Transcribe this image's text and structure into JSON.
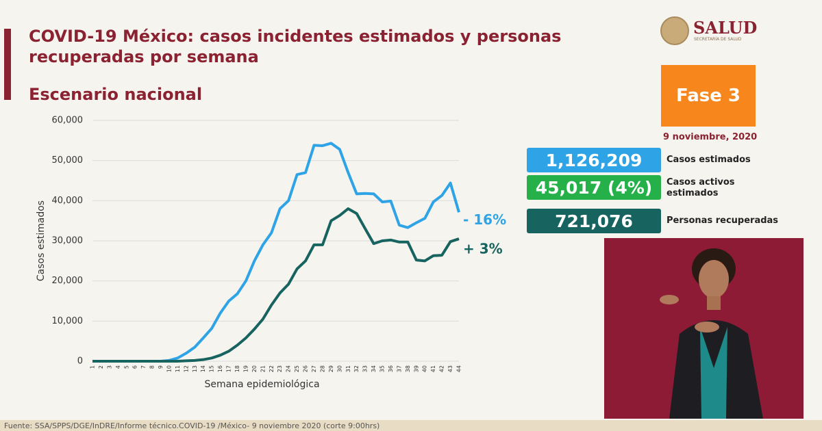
{
  "header": {
    "title_line1": "COVID-19 México: casos incidentes estimados y personas",
    "title_line2": "recuperadas por semana",
    "subtitle": "Escenario nacional",
    "logo_text": "SALUD",
    "logo_subtext": "SECRETARÍA DE SALUD"
  },
  "phase": "Fase 3",
  "date": "9 noviembre, 2020",
  "stats": [
    {
      "value": "1,126,209",
      "label": "Casos estimados",
      "color": "#2ea3e6"
    },
    {
      "value": "45,017 (4%)",
      "label_line1": "Casos activos",
      "label_line2": "estimados",
      "color": "#25b04a"
    },
    {
      "value": "721,076",
      "label": "Personas recuperadas",
      "color": "#17635f"
    }
  ],
  "source": "Fuente: SSA/SPPS/DGE/InDRE/Informe técnico.COVID-19 /México- 9 noviembre 2020 (corte 9:00hrs)",
  "chart_data": {
    "type": "line",
    "x_label": "Semana epidemiológica",
    "y_label": "Casos estimados",
    "categories": [
      "1",
      "2",
      "3",
      "4",
      "5",
      "6",
      "7",
      "8",
      "9",
      "10",
      "11",
      "12",
      "13",
      "14",
      "15",
      "16",
      "17",
      "18",
      "19",
      "20",
      "21",
      "22",
      "23",
      "24",
      "25",
      "26",
      "27",
      "28",
      "29",
      "30",
      "31",
      "32",
      "33",
      "34",
      "35",
      "36",
      "37",
      "38",
      "39",
      "40",
      "41",
      "42",
      "43",
      "44"
    ],
    "series": [
      {
        "color": "#2ea3e6",
        "end_label": "- 16%",
        "values": [
          0,
          0,
          0,
          0,
          0,
          0,
          0,
          0,
          0,
          200,
          800,
          2000,
          3500,
          5800,
          8200,
          12000,
          15000,
          16800,
          20000,
          25000,
          29000,
          32000,
          38000,
          40000,
          46500,
          47000,
          53800,
          53700,
          54300,
          52800,
          47000,
          41700,
          41800,
          41700,
          39700,
          39900,
          33900,
          33300,
          34500,
          35600,
          39700,
          41300,
          44400,
          37100
        ]
      },
      {
        "color": "#17635f",
        "end_label": "+ 3%",
        "values": [
          0,
          0,
          0,
          0,
          0,
          0,
          0,
          0,
          0,
          0,
          0,
          100,
          200,
          400,
          800,
          1500,
          2500,
          4000,
          5800,
          8000,
          10500,
          14000,
          17000,
          19200,
          23000,
          25000,
          29000,
          29000,
          35000,
          36300,
          38000,
          36800,
          33000,
          29300,
          30000,
          30200,
          29700,
          29700,
          25200,
          25000,
          26300,
          26400,
          29800,
          30500
        ]
      }
    ],
    "ylim": [
      0,
      60000
    ],
    "yticks": [
      0,
      {
        "value": 10000,
        "label": "10,000"
      },
      {
        "value": 20000,
        "label": "20,000"
      },
      {
        "value": 30000,
        "label": "30,000"
      },
      {
        "value": 40000,
        "label": "40,000"
      },
      {
        "value": 50000,
        "label": "50,000"
      },
      {
        "value": 60000,
        "label": "60,000"
      }
    ],
    "grid": true
  }
}
